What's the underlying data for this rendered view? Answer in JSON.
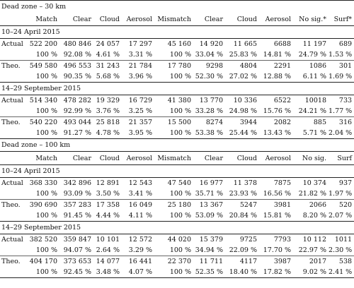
{
  "headers": [
    "Match",
    "Clear",
    "Cloud",
    "Aerosol",
    "Mismatch",
    "Clear",
    "Cloud",
    "Aerosol",
    "No sig.*",
    "Surf*"
  ],
  "headers2": [
    "Match",
    "Clear",
    "Cloud",
    "Aerosol",
    "Mismatch",
    "Clear",
    "Cloud",
    "Aerosol",
    "No sig.",
    "Surf"
  ],
  "sec1_title": "Dead zone – 30 km",
  "sec2_title": "Dead zone – 100 km",
  "period1": "10–24 April 2015",
  "period2": "14–29 September 2015",
  "rows": {
    "s1p1_actual": {
      "label": "Actual",
      "a": [
        "522 200",
        "480 846",
        "24 057",
        "17 297",
        "45 160",
        "14 920",
        "11 665",
        "6688",
        "11 197",
        "689"
      ],
      "b": [
        "100 %",
        "92.08 %",
        "4.61 %",
        "3.31 %",
        "100 %",
        "33.04 %",
        "25.83 %",
        "14.81 %",
        "24.79 %",
        "1.53 %"
      ]
    },
    "s1p1_theo": {
      "label": "Theo.",
      "a": [
        "549 580",
        "496 553",
        "31 243",
        "21 784",
        "17 780",
        "9298",
        "4804",
        "2291",
        "1086",
        "301"
      ],
      "b": [
        "100 %",
        "90.35 %",
        "5.68 %",
        "3.96 %",
        "100 %",
        "52.30 %",
        "27.02 %",
        "12.88 %",
        "6.11 %",
        "1.69 %"
      ]
    },
    "s1p2_actual": {
      "label": "Actual",
      "a": [
        "514 340",
        "478 282",
        "19 329",
        "16 729",
        "41 380",
        "13 770",
        "10 336",
        "6522",
        "10018",
        "733"
      ],
      "b": [
        "100 %",
        "92.99 %",
        "3.76 %",
        "3.25 %",
        "100 %",
        "33.28 %",
        "24.98 %",
        "15.76 %",
        "24.21 %",
        "1.77 %"
      ]
    },
    "s1p2_theo": {
      "label": "Theo.",
      "a": [
        "540 220",
        "493 044",
        "25 818",
        "21 357",
        "15 500",
        "8274",
        "3944",
        "2082",
        "885",
        "316"
      ],
      "b": [
        "100 %",
        "91.27 %",
        "4.78 %",
        "3.95 %",
        "100 %",
        "53.38 %",
        "25.44 %",
        "13.43 %",
        "5.71 %",
        "2.04 %"
      ]
    },
    "s2p1_actual": {
      "label": "Actual",
      "a": [
        "368 330",
        "342 896",
        "12 891",
        "12 543",
        "47 540",
        "16 977",
        "11 378",
        "7875",
        "10 374",
        "937"
      ],
      "b": [
        "100 %",
        "93.09 %",
        "3.50 %",
        "3.41 %",
        "100 %",
        "35.71 %",
        "23.93 %",
        "16.56 %",
        "21.82 %",
        "1.97 %"
      ]
    },
    "s2p1_theo": {
      "label": "Theo.",
      "a": [
        "390 690",
        "357 283",
        "17 358",
        "16 049",
        "25 180",
        "13 367",
        "5247",
        "3981",
        "2066",
        "520"
      ],
      "b": [
        "100 %",
        "91.45 %",
        "4.44 %",
        "4.11 %",
        "100 %",
        "53.09 %",
        "20.84 %",
        "15.81 %",
        "8.20 %",
        "2.07 %"
      ]
    },
    "s2p2_actual": {
      "label": "Actual",
      "a": [
        "382 520",
        "359 847",
        "10 101",
        "12 572",
        "44 020",
        "15 379",
        "9725",
        "7793",
        "10 112",
        "1011"
      ],
      "b": [
        "100 %",
        "94.07 %",
        "2.64 %",
        "3.29 %",
        "100 %",
        "34.94 %",
        "22.09 %",
        "17.70 %",
        "22.97 %",
        "2.30 %"
      ]
    },
    "s2p2_theo": {
      "label": "Theo.",
      "a": [
        "404 170",
        "373 653",
        "14 077",
        "16 441",
        "22 370",
        "11 711",
        "4117",
        "3987",
        "2017",
        "538"
      ],
      "b": [
        "100 %",
        "92.45 %",
        "3.48 %",
        "4.07 %",
        "100 %",
        "52.35 %",
        "18.40 %",
        "17.82 %",
        "9.02 %",
        "2.41 %"
      ]
    }
  }
}
